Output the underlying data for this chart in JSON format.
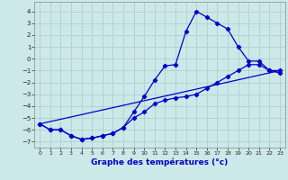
{
  "xlabel": "Graphe des températures (°c)",
  "bg_color": "#cde8e8",
  "grid_color": "#aacccc",
  "line_color": "#0000cc",
  "xlim": [
    -0.5,
    23.5
  ],
  "ylim": [
    -7.5,
    4.8
  ],
  "yticks": [
    -7,
    -6,
    -5,
    -4,
    -3,
    -2,
    -1,
    0,
    1,
    2,
    3,
    4
  ],
  "xticks": [
    0,
    1,
    2,
    3,
    4,
    5,
    6,
    7,
    8,
    9,
    10,
    11,
    12,
    13,
    14,
    15,
    16,
    17,
    18,
    19,
    20,
    21,
    22,
    23
  ],
  "curve1_x": [
    0,
    1,
    2,
    3,
    4,
    5,
    6,
    7,
    8,
    9,
    10,
    11,
    12,
    13,
    14,
    15,
    16,
    17,
    18,
    19,
    20,
    21,
    22,
    23
  ],
  "curve1_y": [
    -5.5,
    -6.0,
    -6.0,
    -6.5,
    -6.8,
    -6.7,
    -6.5,
    -6.3,
    -5.8,
    -4.5,
    -3.2,
    -1.8,
    -0.6,
    -0.5,
    2.3,
    4.0,
    3.5,
    3.0,
    2.5,
    1.0,
    -0.2,
    -0.2,
    -1.0,
    -1.0
  ],
  "curve2_x": [
    0,
    1,
    2,
    3,
    4,
    5,
    6,
    7,
    8,
    9,
    10,
    11,
    12,
    13,
    14,
    15,
    16,
    17,
    18,
    19,
    20,
    21,
    22,
    23
  ],
  "curve2_y": [
    -5.5,
    -6.0,
    -6.0,
    -6.5,
    -6.8,
    -6.7,
    -6.5,
    -6.3,
    -5.8,
    -5.0,
    -4.5,
    -3.8,
    -3.5,
    -3.3,
    -3.2,
    -3.0,
    -2.5,
    -2.0,
    -1.5,
    -1.0,
    -0.5,
    -0.5,
    -1.0,
    -1.2
  ],
  "curve3_x": [
    0,
    23
  ],
  "curve3_y": [
    -5.5,
    -1.0
  ],
  "marker": "D",
  "markersize": 2.2,
  "linewidth": 0.9,
  "tick_fontsize": 5.5,
  "xlabel_fontsize": 6.5
}
